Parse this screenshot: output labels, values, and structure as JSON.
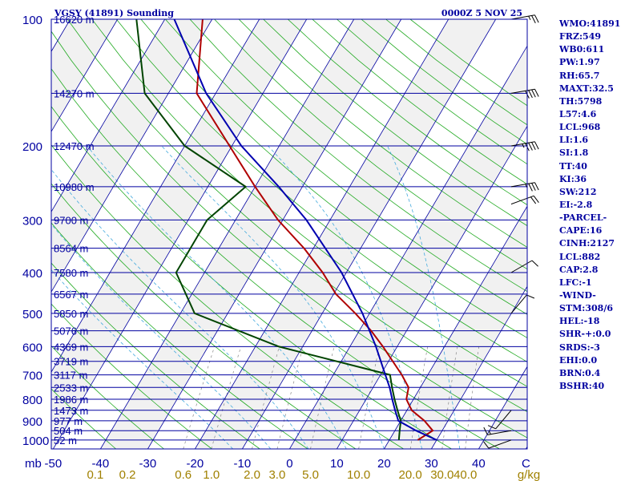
{
  "chart_data": {
    "type": "line",
    "title": "VGSY (41891) Sounding",
    "valid_time": "0000Z  5 NOV 25",
    "pressure_ticks": [
      "100",
      "200",
      "300",
      "400",
      "500",
      "600",
      "700",
      "800",
      "900",
      "1000"
    ],
    "pressure_unit": "mb",
    "temperature_ticks": [
      "-50",
      "-40",
      "-30",
      "-20",
      "-10",
      "0",
      "10",
      "20",
      "30",
      "40",
      "C"
    ],
    "mixing_ratio_ticks": [
      "0.1",
      "0.2",
      "0.6",
      "1.0",
      "2.0",
      "3.0",
      "5.0",
      "10.0",
      "20.0",
      "30.0",
      "40.0"
    ],
    "mixing_ratio_unit": "g/kg",
    "height_labels": [
      {
        "p": 100,
        "label": "16620 m"
      },
      {
        "p": 150,
        "label": "14270 m"
      },
      {
        "p": 200,
        "label": "12470 m"
      },
      {
        "p": 250,
        "label": "10980 m"
      },
      {
        "p": 300,
        "label": "9700 m"
      },
      {
        "p": 350,
        "label": "8564 m"
      },
      {
        "p": 400,
        "label": "7580 m"
      },
      {
        "p": 450,
        "label": "6567 m"
      },
      {
        "p": 500,
        "label": "5850 m"
      },
      {
        "p": 550,
        "label": "5076 m"
      },
      {
        "p": 600,
        "label": "4369 m"
      },
      {
        "p": 650,
        "label": "3719 m"
      },
      {
        "p": 700,
        "label": "3117 m"
      },
      {
        "p": 750,
        "label": "2533 m"
      },
      {
        "p": 800,
        "label": "1986 m"
      },
      {
        "p": 850,
        "label": "1473 m"
      },
      {
        "p": 900,
        "label": "977 m"
      },
      {
        "p": 950,
        "label": "504 m"
      },
      {
        "p": 1000,
        "label": "52 m"
      }
    ],
    "temperature_profile": [
      {
        "p": 1000,
        "t": 26.0
      },
      {
        "p": 950,
        "t": 28.0
      },
      {
        "p": 900,
        "t": 25.0
      },
      {
        "p": 850,
        "t": 21.0
      },
      {
        "p": 800,
        "t": 18.5
      },
      {
        "p": 750,
        "t": 17.5
      },
      {
        "p": 700,
        "t": 14.5
      },
      {
        "p": 600,
        "t": 7.0
      },
      {
        "p": 550,
        "t": 2.5
      },
      {
        "p": 500,
        "t": -3.0
      },
      {
        "p": 450,
        "t": -9.5
      },
      {
        "p": 400,
        "t": -15.0
      },
      {
        "p": 350,
        "t": -22.0
      },
      {
        "p": 300,
        "t": -31.0
      },
      {
        "p": 250,
        "t": -40.0
      },
      {
        "p": 200,
        "t": -50.5
      },
      {
        "p": 150,
        "t": -64.0
      },
      {
        "p": 100,
        "t": -72.0
      }
    ],
    "dewpoint_profile": [
      {
        "p": 1000,
        "td": 22.0
      },
      {
        "p": 950,
        "td": 21.0
      },
      {
        "p": 900,
        "td": 20.0
      },
      {
        "p": 850,
        "td": 18.0
      },
      {
        "p": 800,
        "td": 16.0
      },
      {
        "p": 750,
        "td": 14.0
      },
      {
        "p": 700,
        "td": 12.0
      },
      {
        "p": 600,
        "td": -15.0
      },
      {
        "p": 500,
        "td": -37.0
      },
      {
        "p": 400,
        "td": -46.0
      },
      {
        "p": 300,
        "td": -46.0
      },
      {
        "p": 250,
        "td": -42.0
      },
      {
        "p": 200,
        "td": -60.0
      },
      {
        "p": 150,
        "td": -75.0
      },
      {
        "p": 100,
        "td": -86.0
      }
    ],
    "parcel_profile": [
      {
        "p": 1000,
        "t": 30.0
      },
      {
        "p": 950,
        "t": 24.5
      },
      {
        "p": 900,
        "t": 19.5
      },
      {
        "p": 850,
        "t": 17.5
      },
      {
        "p": 800,
        "t": 15.5
      },
      {
        "p": 750,
        "t": 13.5
      },
      {
        "p": 700,
        "t": 11.0
      },
      {
        "p": 600,
        "t": 5.5
      },
      {
        "p": 500,
        "t": -1.5
      },
      {
        "p": 400,
        "t": -11.0
      },
      {
        "p": 300,
        "t": -25.0
      },
      {
        "p": 250,
        "t": -35.0
      },
      {
        "p": 200,
        "t": -48.0
      },
      {
        "p": 150,
        "t": -62.0
      },
      {
        "p": 100,
        "t": -78.0
      }
    ],
    "wind_barbs": [
      {
        "p": 100,
        "dir": 80,
        "kt": 25
      },
      {
        "p": 150,
        "dir": 80,
        "kt": 40
      },
      {
        "p": 200,
        "dir": 80,
        "kt": 45
      },
      {
        "p": 250,
        "dir": 80,
        "kt": 35
      },
      {
        "p": 275,
        "dir": 70,
        "kt": 20
      },
      {
        "p": 400,
        "dir": 60,
        "kt": 10
      },
      {
        "p": 500,
        "dir": 40,
        "kt": 10
      },
      {
        "p": 850,
        "dir": 220,
        "kt": 10
      },
      {
        "p": 950,
        "dir": 260,
        "kt": 15
      },
      {
        "p": 1000,
        "dir": 250,
        "kt": 10
      }
    ],
    "indices": [
      "WMO:41891",
      "FRZ:549",
      "WB0:611",
      "PW:1.97",
      "RH:65.7",
      "MAXT:32.5",
      "TH:5798",
      "L57:4.6",
      "LCL:968",
      "LI:1.6",
      "SI:1.8",
      "TT:40",
      "KI:36",
      "SW:212",
      "EI:-2.8",
      "-PARCEL-",
      "CAPE:16",
      "CINH:2127",
      "LCL:882",
      "CAP:2.8",
      "LFC:-1",
      "-WIND-",
      "STM:308/6",
      "HEL:-18",
      "SHR-+:0.0",
      "SRDS:-3",
      "EHI:0.0",
      "BRN:0.4",
      "BSHR:40"
    ],
    "grid": true,
    "colors": {
      "frame": "#0000a0",
      "text": "#0000a0",
      "isobars": "#0000a0",
      "isotherms": "#0000a0",
      "dry_adiabats": "#22aa22",
      "moist_adiabats": "#44aadd",
      "mixing_ratio": "#888888",
      "temperature": "#b00000",
      "dewpoint": "#004400",
      "parcel": "#0000b0",
      "mixing_ratio_ticks": "#a08000",
      "wind_barbs": "#000000",
      "shading": "#f1f1f1"
    }
  }
}
